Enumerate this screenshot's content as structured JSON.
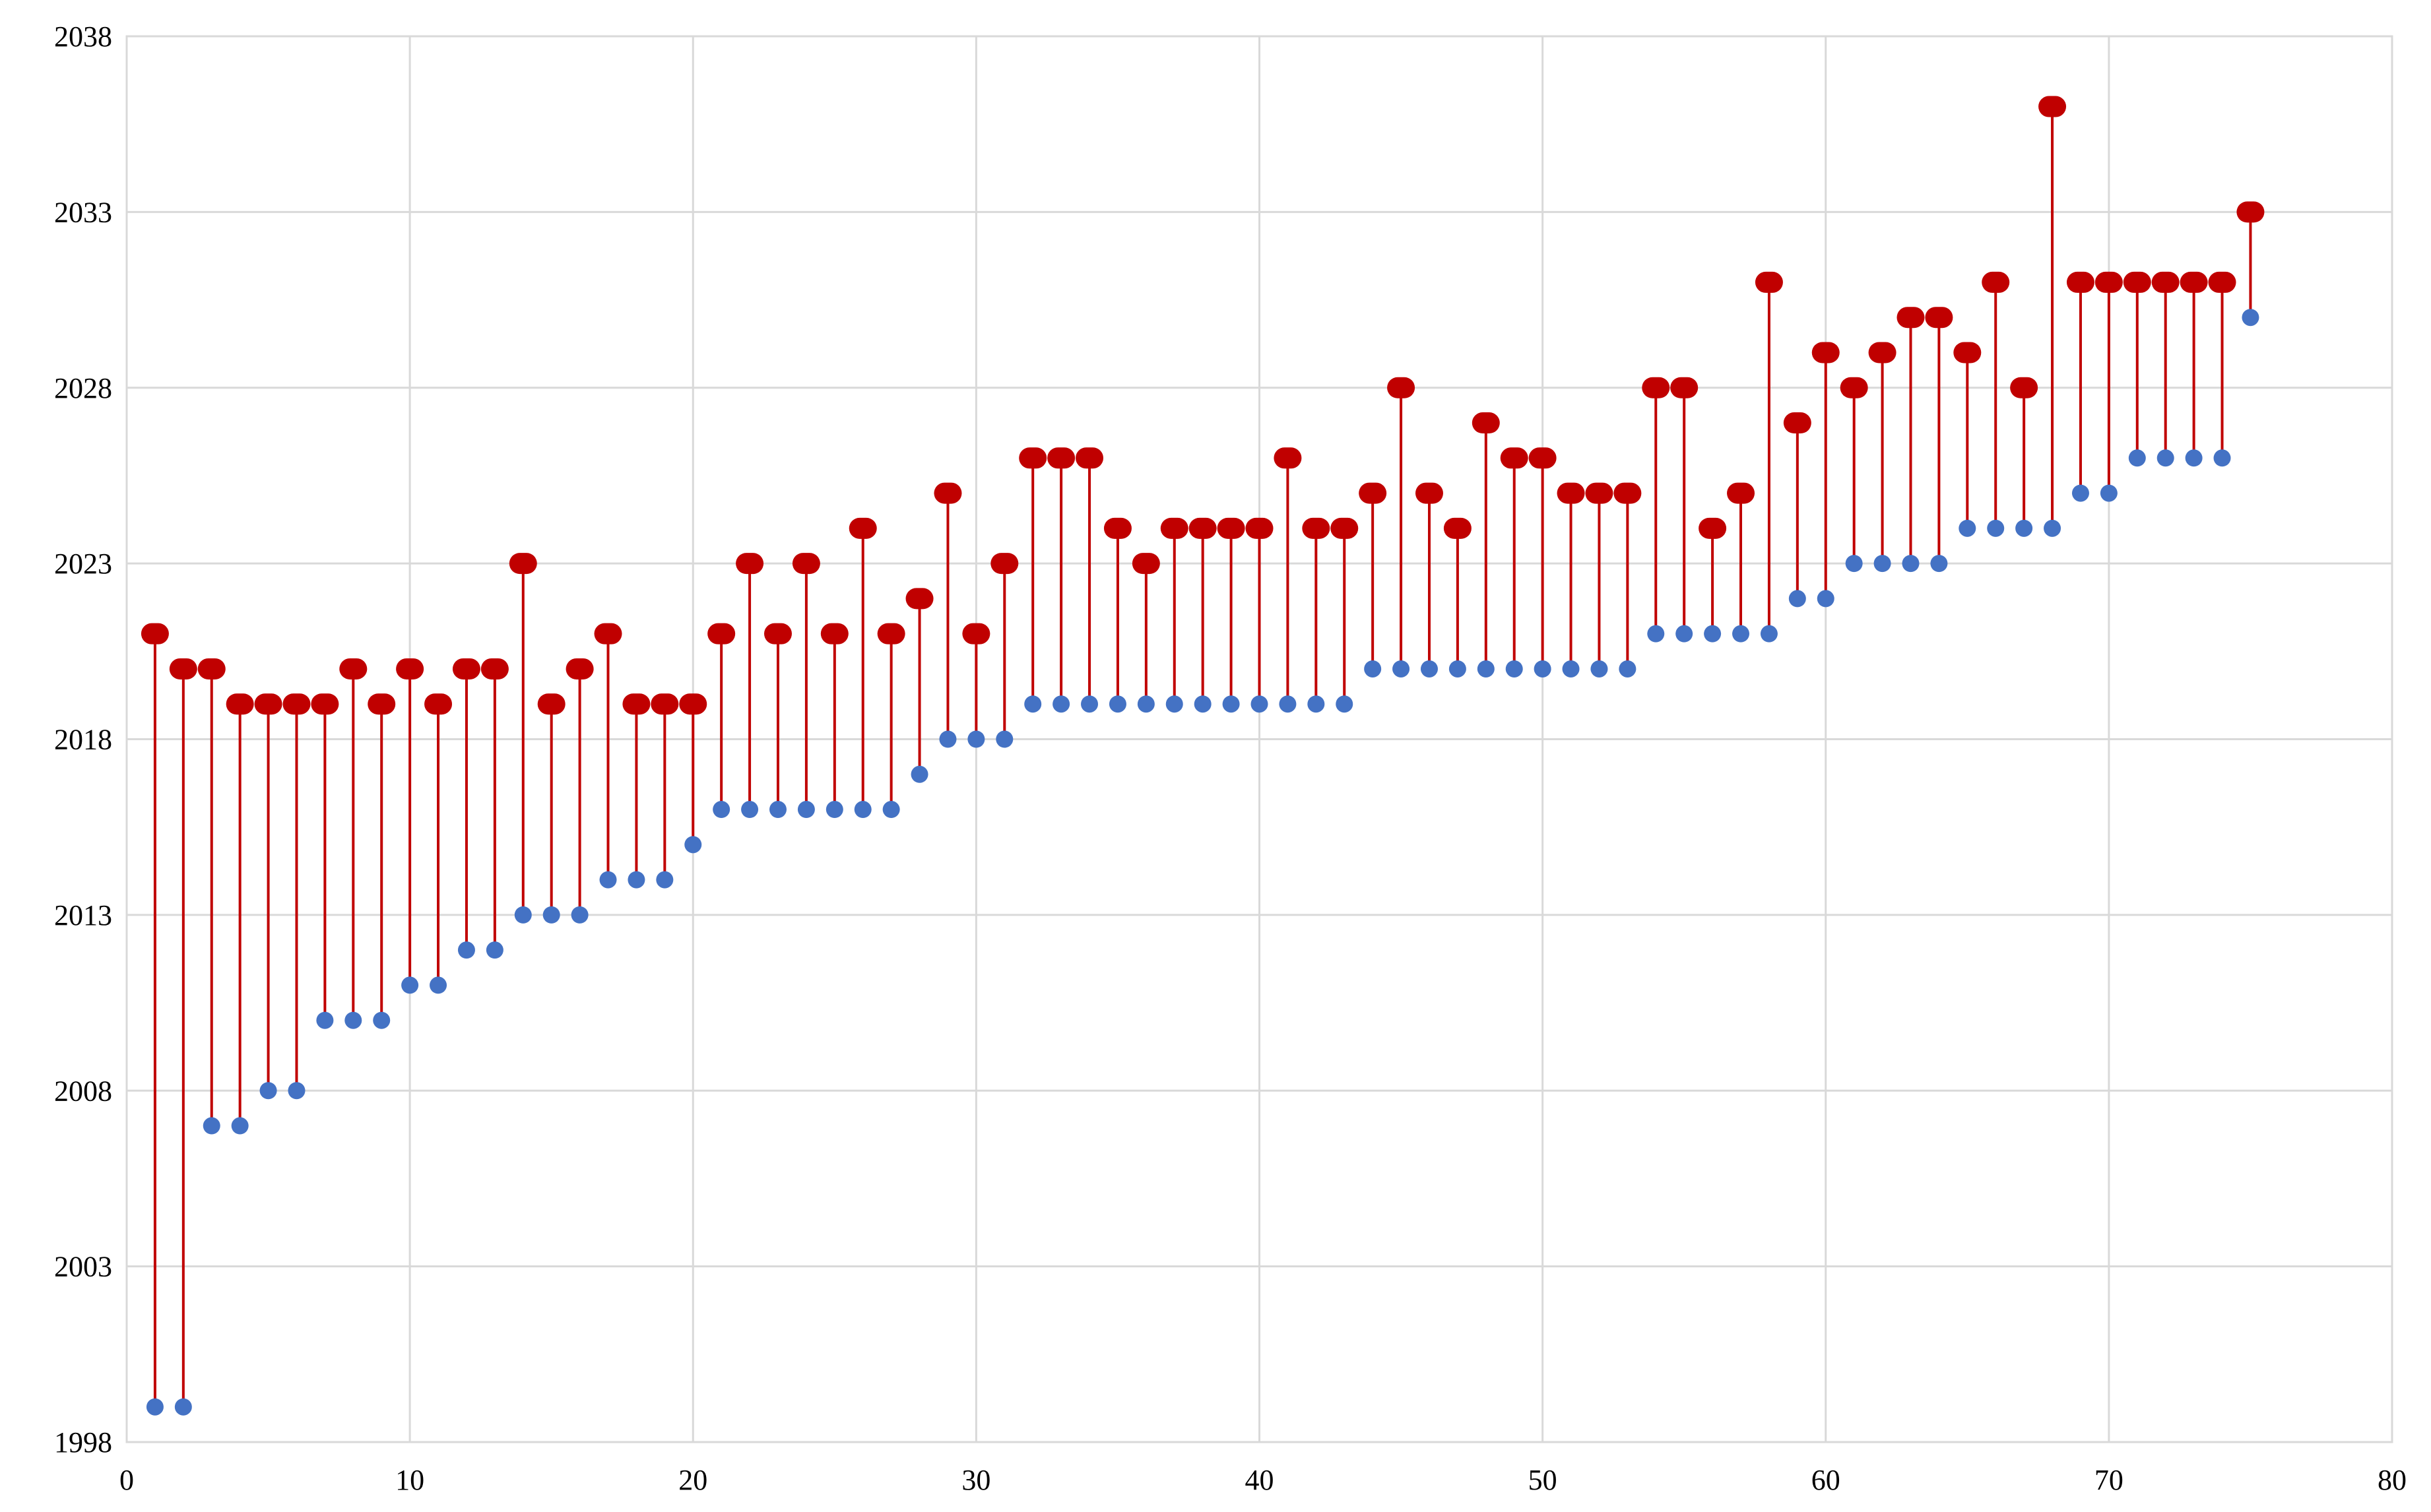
{
  "chart_data": {
    "type": "scatter",
    "subtype": "dumbbell-stem",
    "title": "",
    "xlabel": "",
    "ylabel": "",
    "xlim": [
      0,
      80
    ],
    "ylim": [
      1998,
      2038
    ],
    "x_ticks": [
      0,
      10,
      20,
      30,
      40,
      50,
      60,
      70,
      80
    ],
    "y_ticks": [
      1998,
      2003,
      2008,
      2013,
      2018,
      2023,
      2028,
      2033,
      2038
    ],
    "grid": true,
    "legend": "none",
    "colors": {
      "start": "#4472c4",
      "end": "#c00000",
      "stem": "#c00000",
      "grid": "#d9d9d9"
    },
    "x": [
      1,
      2,
      3,
      4,
      5,
      6,
      7,
      8,
      9,
      10,
      11,
      12,
      13,
      14,
      15,
      16,
      17,
      18,
      19,
      20,
      21,
      22,
      23,
      24,
      25,
      26,
      27,
      28,
      29,
      30,
      31,
      32,
      33,
      34,
      35,
      36,
      37,
      38,
      39,
      40,
      41,
      42,
      43,
      44,
      45,
      46,
      47,
      48,
      49,
      50,
      51,
      52,
      53,
      54,
      55,
      56,
      57,
      58,
      59,
      60,
      61,
      62,
      63,
      64,
      65,
      66,
      67,
      68,
      69,
      70,
      71,
      72,
      73,
      74,
      75
    ],
    "series": [
      {
        "values": [
          1999,
          1999,
          2007,
          2007,
          2008,
          2008,
          2010,
          2010,
          2010,
          2011,
          2011,
          2012,
          2012,
          2013,
          2013,
          2013,
          2014,
          2014,
          2014,
          2015,
          2016,
          2016,
          2016,
          2016,
          2016,
          2016,
          2016,
          2017,
          2018,
          2018,
          2018,
          2019,
          2019,
          2019,
          2019,
          2019,
          2019,
          2019,
          2019,
          2019,
          2019,
          2019,
          2019,
          2020,
          2020,
          2020,
          2020,
          2020,
          2020,
          2020,
          2020,
          2020,
          2020,
          2021,
          2021,
          2021,
          2021,
          2021,
          2022,
          2022,
          2023,
          2023,
          2023,
          2023,
          2024,
          2024,
          2024,
          2024,
          2025,
          2025,
          2026,
          2026,
          2026,
          2026,
          2030
        ]
      },
      {
        "values": [
          2021,
          2020,
          2020,
          2019,
          2019,
          2019,
          2019,
          2020,
          2019,
          2020,
          2019,
          2020,
          2020,
          2023,
          2019,
          2020,
          2021,
          2019,
          2019,
          2019,
          2021,
          2023,
          2021,
          2023,
          2021,
          2024,
          2021,
          2022,
          2025,
          2021,
          2023,
          2026,
          2026,
          2026,
          2024,
          2023,
          2024,
          2024,
          2024,
          2024,
          2026,
          2024,
          2024,
          2025,
          2028,
          2025,
          2024,
          2027,
          2026,
          2026,
          2025,
          2025,
          2025,
          2028,
          2028,
          2024,
          2025,
          2031,
          2027,
          2029,
          2028,
          2029,
          2030,
          2030,
          2029,
          2031,
          2028,
          2036,
          2031,
          2031,
          2031,
          2031,
          2031,
          2031,
          2033
        ]
      }
    ]
  }
}
